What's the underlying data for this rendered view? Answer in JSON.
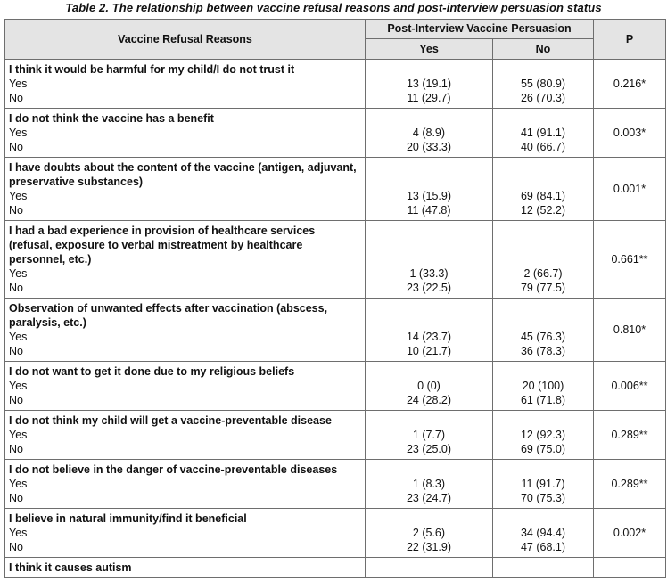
{
  "caption": "Table 2. The relationship between vaccine refusal reasons and post-interview persuasion status",
  "header": {
    "reasons": "Vaccine Refusal Reasons",
    "group": "Post-Interview Vaccine Persuasion",
    "yes": "Yes",
    "no": "No",
    "p": "P"
  },
  "rows": [
    {
      "reason": "I think it would be harmful for my child/I do not trust it",
      "sub_yes": "Yes",
      "sub_no": "No",
      "yes_yes": "13 (19.1)",
      "yes_no": "11 (29.7)",
      "no_yes": "55 (80.9)",
      "no_no": "26 (70.3)",
      "p": "0.216*"
    },
    {
      "reason": "I do not think the vaccine has a benefit",
      "sub_yes": "Yes",
      "sub_no": "No",
      "yes_yes": "4 (8.9)",
      "yes_no": "20 (33.3)",
      "no_yes": "41 (91.1)",
      "no_no": "40 (66.7)",
      "p": "0.003*"
    },
    {
      "reason": "I have doubts about the content of the vaccine (antigen, adjuvant, preservative substances)",
      "sub_yes": "Yes",
      "sub_no": "No",
      "yes_yes": "13 (15.9)",
      "yes_no": "11 (47.8)",
      "no_yes": "69 (84.1)",
      "no_no": "12 (52.2)",
      "p": "0.001*"
    },
    {
      "reason": "I had a bad experience in provision of healthcare services (refusal, exposure to verbal mistreatment by healthcare personnel, etc.)",
      "sub_yes": "Yes",
      "sub_no": "No",
      "yes_yes": "1 (33.3)",
      "yes_no": "23 (22.5)",
      "no_yes": "2 (66.7)",
      "no_no": "79 (77.5)",
      "p": "0.661**"
    },
    {
      "reason": "Observation of unwanted effects after vaccination (abscess, paralysis, etc.)",
      "sub_yes": "Yes",
      "sub_no": "No",
      "yes_yes": "14 (23.7)",
      "yes_no": "10 (21.7)",
      "no_yes": "45 (76.3)",
      "no_no": "36 (78.3)",
      "p": "0.810*"
    },
    {
      "reason": "I do not want to get it done due to my religious beliefs",
      "sub_yes": "Yes",
      "sub_no": "No",
      "yes_yes": "0 (0)",
      "yes_no": "24 (28.2)",
      "no_yes": "20 (100)",
      "no_no": "61 (71.8)",
      "p": "0.006**"
    },
    {
      "reason": "I do not think my child will get a vaccine-preventable disease",
      "sub_yes": "Yes",
      "sub_no": "No",
      "yes_yes": "1 (7.7)",
      "yes_no": "23 (25.0)",
      "no_yes": "12 (92.3)",
      "no_no": "69 (75.0)",
      "p": "0.289**"
    },
    {
      "reason": "I do not believe in the danger of vaccine-preventable diseases",
      "sub_yes": "Yes",
      "sub_no": "No",
      "yes_yes": "1 (8.3)",
      "yes_no": "23 (24.7)",
      "no_yes": "11 (91.7)",
      "no_no": "70 (75.3)",
      "p": "0.289**"
    },
    {
      "reason": "I believe in natural immunity/find it beneficial",
      "sub_yes": "Yes",
      "sub_no": "No",
      "yes_yes": "2 (5.6)",
      "yes_no": "22 (31.9)",
      "no_yes": "34 (94.4)",
      "no_no": "47 (68.1)",
      "p": "0.002*"
    }
  ],
  "partial_row": {
    "reason": "I think it causes autism"
  }
}
